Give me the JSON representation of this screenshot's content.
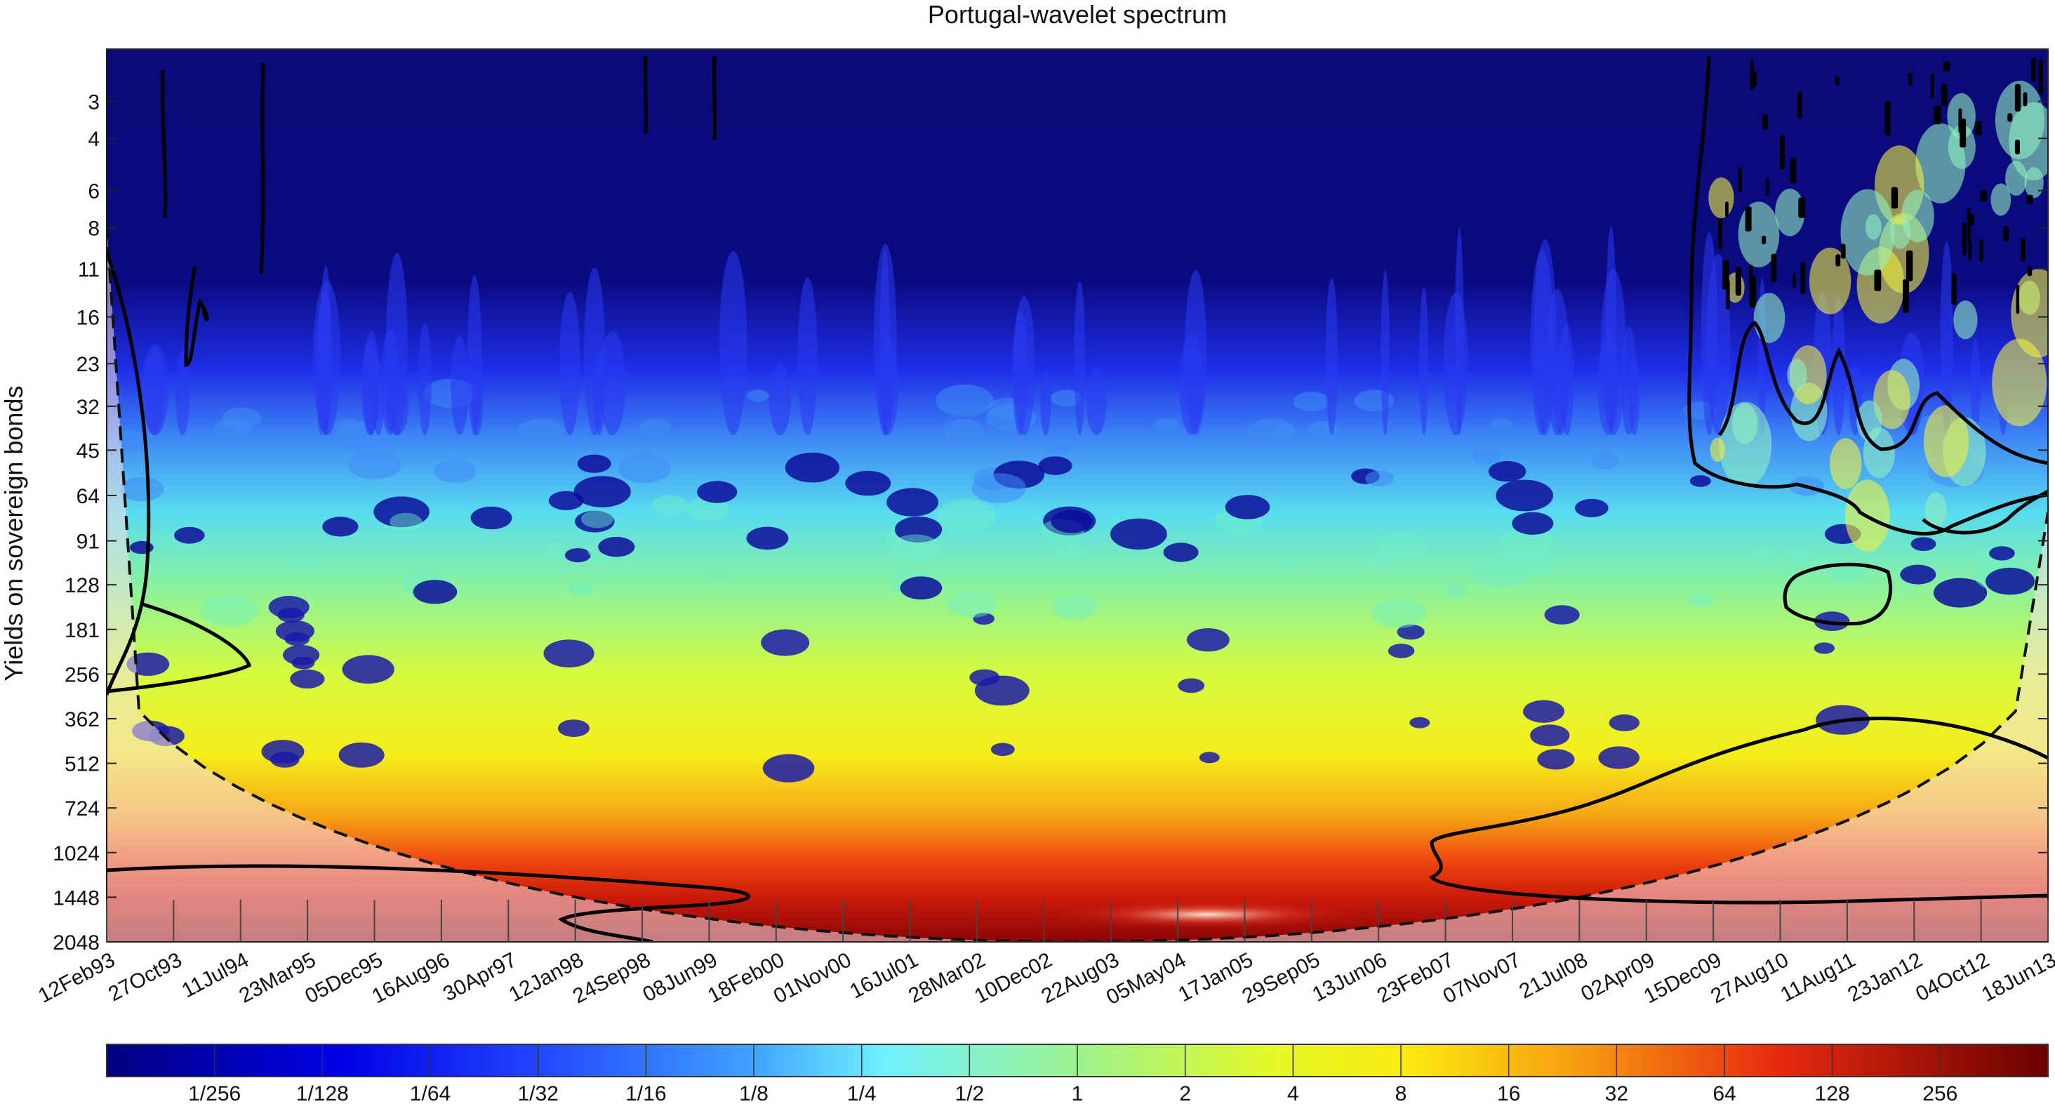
{
  "chart_data": {
    "type": "heatmap",
    "title": "Portugal-wavelet spectrum",
    "ylabel": "Yields on sovereign bonds",
    "xlabel": "",
    "x_ticks": [
      "12Feb93",
      "27Oct93",
      "11Jul94",
      "23Mar95",
      "05Dec95",
      "16Aug96",
      "30Apr97",
      "12Jan98",
      "24Sep98",
      "08Jun99",
      "18Feb00",
      "01Nov00",
      "16Jul01",
      "28Mar02",
      "10Dec02",
      "22Aug03",
      "05May04",
      "17Jan05",
      "29Sep05",
      "13Jun06",
      "23Feb07",
      "07Nov07",
      "21Jul08",
      "02Apr09",
      "15Dec09",
      "27Aug10",
      "11Aug11",
      "23Jan12",
      "04Oct12",
      "18Jun13"
    ],
    "y_ticks": [
      "3",
      "4",
      "6",
      "8",
      "11",
      "16",
      "23",
      "32",
      "45",
      "64",
      "91",
      "128",
      "181",
      "256",
      "362",
      "512",
      "724",
      "1024",
      "1448",
      "2048"
    ],
    "y_scale": "log2",
    "y_direction": "reversed",
    "y_range": [
      2,
      2048
    ],
    "colorbar": {
      "labels": [
        "1/256",
        "1/128",
        "1/64",
        "1/32",
        "1/16",
        "1/8",
        "1/4",
        "1/2",
        "1",
        "2",
        "4",
        "8",
        "16",
        "32",
        "64",
        "128",
        "256"
      ],
      "scale": "log2",
      "colormap": [
        "#00008f",
        "#0000ff",
        "#00ffff",
        "#ffff00",
        "#ff0000",
        "#800000"
      ]
    },
    "features": {
      "cone_of_influence": true,
      "significance_contours": true,
      "dominant_band": "high power at periods 724-2048 across the sample, peaking 2002-2005",
      "crisis_region": "significant power at short periods 2010-2013"
    }
  }
}
